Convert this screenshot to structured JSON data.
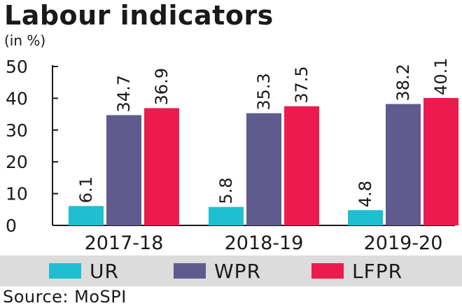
{
  "title": "Labour indicators",
  "unit": "(in %)",
  "source": "Source: MoSPI",
  "chart_data": {
    "type": "bar",
    "categories": [
      "2017-18",
      "2018-19",
      "2019-20"
    ],
    "series": [
      {
        "name": "UR",
        "color": "#1ebfd1",
        "values": [
          6.1,
          5.8,
          4.8
        ]
      },
      {
        "name": "WPR",
        "color": "#5f5b8f",
        "values": [
          34.7,
          35.3,
          38.2
        ]
      },
      {
        "name": "LFPR",
        "color": "#ec1b4f",
        "values": [
          36.9,
          37.5,
          40.1
        ]
      }
    ],
    "yticks": [
      0,
      10,
      20,
      30,
      40,
      50
    ],
    "ylim": [
      0,
      50
    ],
    "legend": "bottom",
    "grid": false
  }
}
